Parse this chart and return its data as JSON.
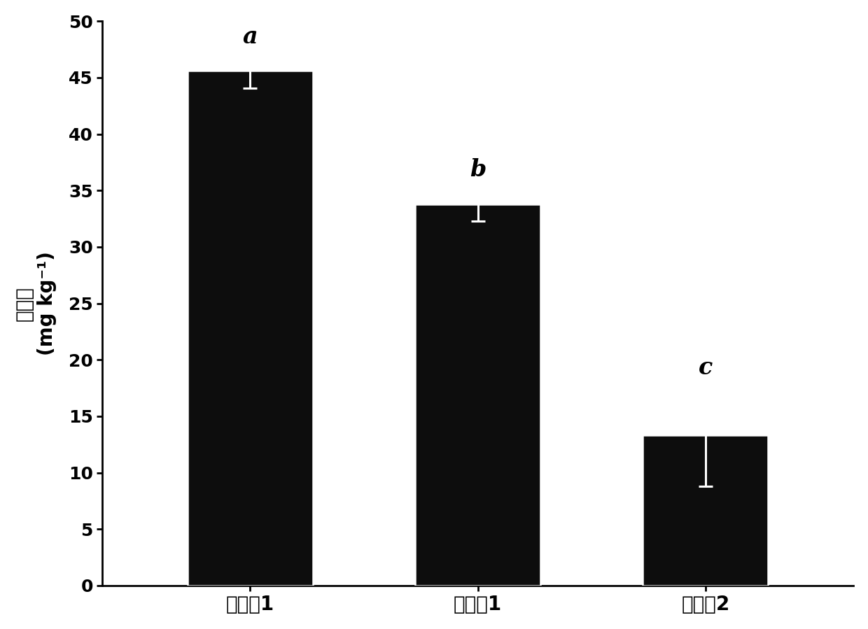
{
  "categories": [
    "对比兣1",
    "实施兣1",
    "实施兣2"
  ],
  "values": [
    45.6,
    33.8,
    13.3
  ],
  "errors": [
    1.5,
    1.5,
    4.5
  ],
  "significance_labels": [
    "a",
    "b",
    "c"
  ],
  "bar_color": "#0d0d0d",
  "bar_edgecolor": "#ffffff",
  "bar_linewidth": 1.8,
  "error_color": "#ffffff",
  "ylabel_line1": "确含量",
  "ylabel_line2": "(mg kg⁻¹)",
  "ylim": [
    0,
    50
  ],
  "yticks": [
    0,
    5,
    10,
    15,
    20,
    25,
    30,
    35,
    40,
    45,
    50
  ],
  "background_color": "#ffffff",
  "bar_width": 0.55,
  "sig_fontsize": 24,
  "tick_fontsize": 18,
  "ylabel_fontsize": 20,
  "xlabel_fontsize": 20,
  "figsize": [
    12.4,
    8.99
  ],
  "dpi": 100
}
